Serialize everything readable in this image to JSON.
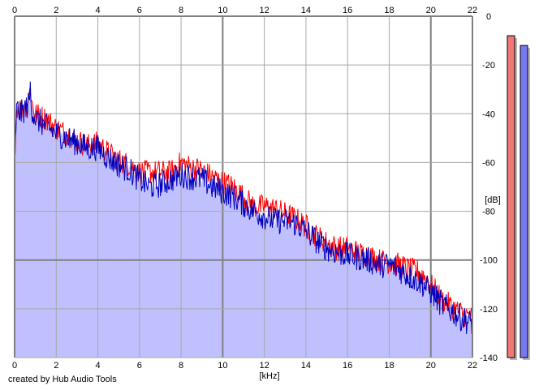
{
  "chart_data": {
    "type": "area",
    "xlabel": "[kHz]",
    "ylabel": "[dB]",
    "xlim": [
      0,
      22
    ],
    "ylim": [
      -140,
      0
    ],
    "x_ticks": [
      0,
      2,
      4,
      6,
      8,
      10,
      12,
      14,
      16,
      18,
      20,
      22
    ],
    "y_ticks": [
      0,
      -20,
      -40,
      -60,
      -80,
      -100,
      -120,
      -140
    ],
    "grid": true,
    "x_major_every": 10,
    "series": [
      {
        "color": "#ff0000",
        "x": [
          0,
          0.1,
          0.3,
          0.5,
          0.7,
          0.75,
          0.8,
          1,
          1.5,
          2,
          2.5,
          3,
          3.5,
          4,
          4.5,
          5,
          5.5,
          6,
          6.5,
          7,
          7.5,
          8,
          8.5,
          9,
          9.5,
          10,
          10.5,
          11,
          11.5,
          12,
          12.5,
          13,
          13.5,
          14,
          14.5,
          15,
          15.5,
          16,
          16.5,
          17,
          17.5,
          18,
          18.5,
          19,
          19.5,
          20,
          20.5,
          21,
          21.5,
          22
        ],
        "values": [
          -58,
          -37,
          -38,
          -37,
          -34,
          -26,
          -35,
          -40,
          -42,
          -46,
          -48,
          -51,
          -53,
          -52,
          -56,
          -59,
          -61,
          -64,
          -64,
          -64,
          -64,
          -60,
          -62,
          -63,
          -66,
          -68,
          -70,
          -74,
          -78,
          -78,
          -79,
          -81,
          -83,
          -86,
          -90,
          -93,
          -95,
          -95,
          -97,
          -98,
          -100,
          -101,
          -102,
          -104,
          -105,
          -110,
          -116,
          -119,
          -122,
          -124
        ]
      },
      {
        "color": "#0000c0",
        "x": [
          0,
          0.1,
          0.3,
          0.5,
          0.7,
          0.75,
          0.8,
          1,
          1.5,
          2,
          2.5,
          3,
          3.5,
          4,
          4.5,
          5,
          5.5,
          6,
          6.5,
          7,
          7.5,
          8,
          8.5,
          9,
          9.5,
          10,
          10.5,
          11,
          11.5,
          12,
          12.5,
          13,
          13.5,
          14,
          14.5,
          15,
          15.5,
          16,
          16.5,
          17,
          17.5,
          18,
          18.5,
          19,
          19.5,
          20,
          20.5,
          21,
          21.5,
          22
        ],
        "values": [
          -58,
          -38,
          -40,
          -38,
          -36,
          -29,
          -37,
          -42,
          -45,
          -48,
          -50,
          -52,
          -54,
          -54,
          -58,
          -61,
          -63,
          -67,
          -70,
          -69,
          -67,
          -65,
          -66,
          -67,
          -70,
          -72,
          -74,
          -77,
          -80,
          -82,
          -84,
          -84,
          -85,
          -88,
          -92,
          -95,
          -97,
          -98,
          -99,
          -100,
          -102,
          -102,
          -104,
          -107,
          -109,
          -113,
          -118,
          -121,
          -124,
          -126
        ]
      }
    ],
    "fill_color": "#c0c0ff",
    "level_meters": [
      {
        "color": "#f07878",
        "top_db": -8
      },
      {
        "color": "#7878f0",
        "top_db": -12
      }
    ]
  },
  "credit": "created by Hub Audio Tools"
}
